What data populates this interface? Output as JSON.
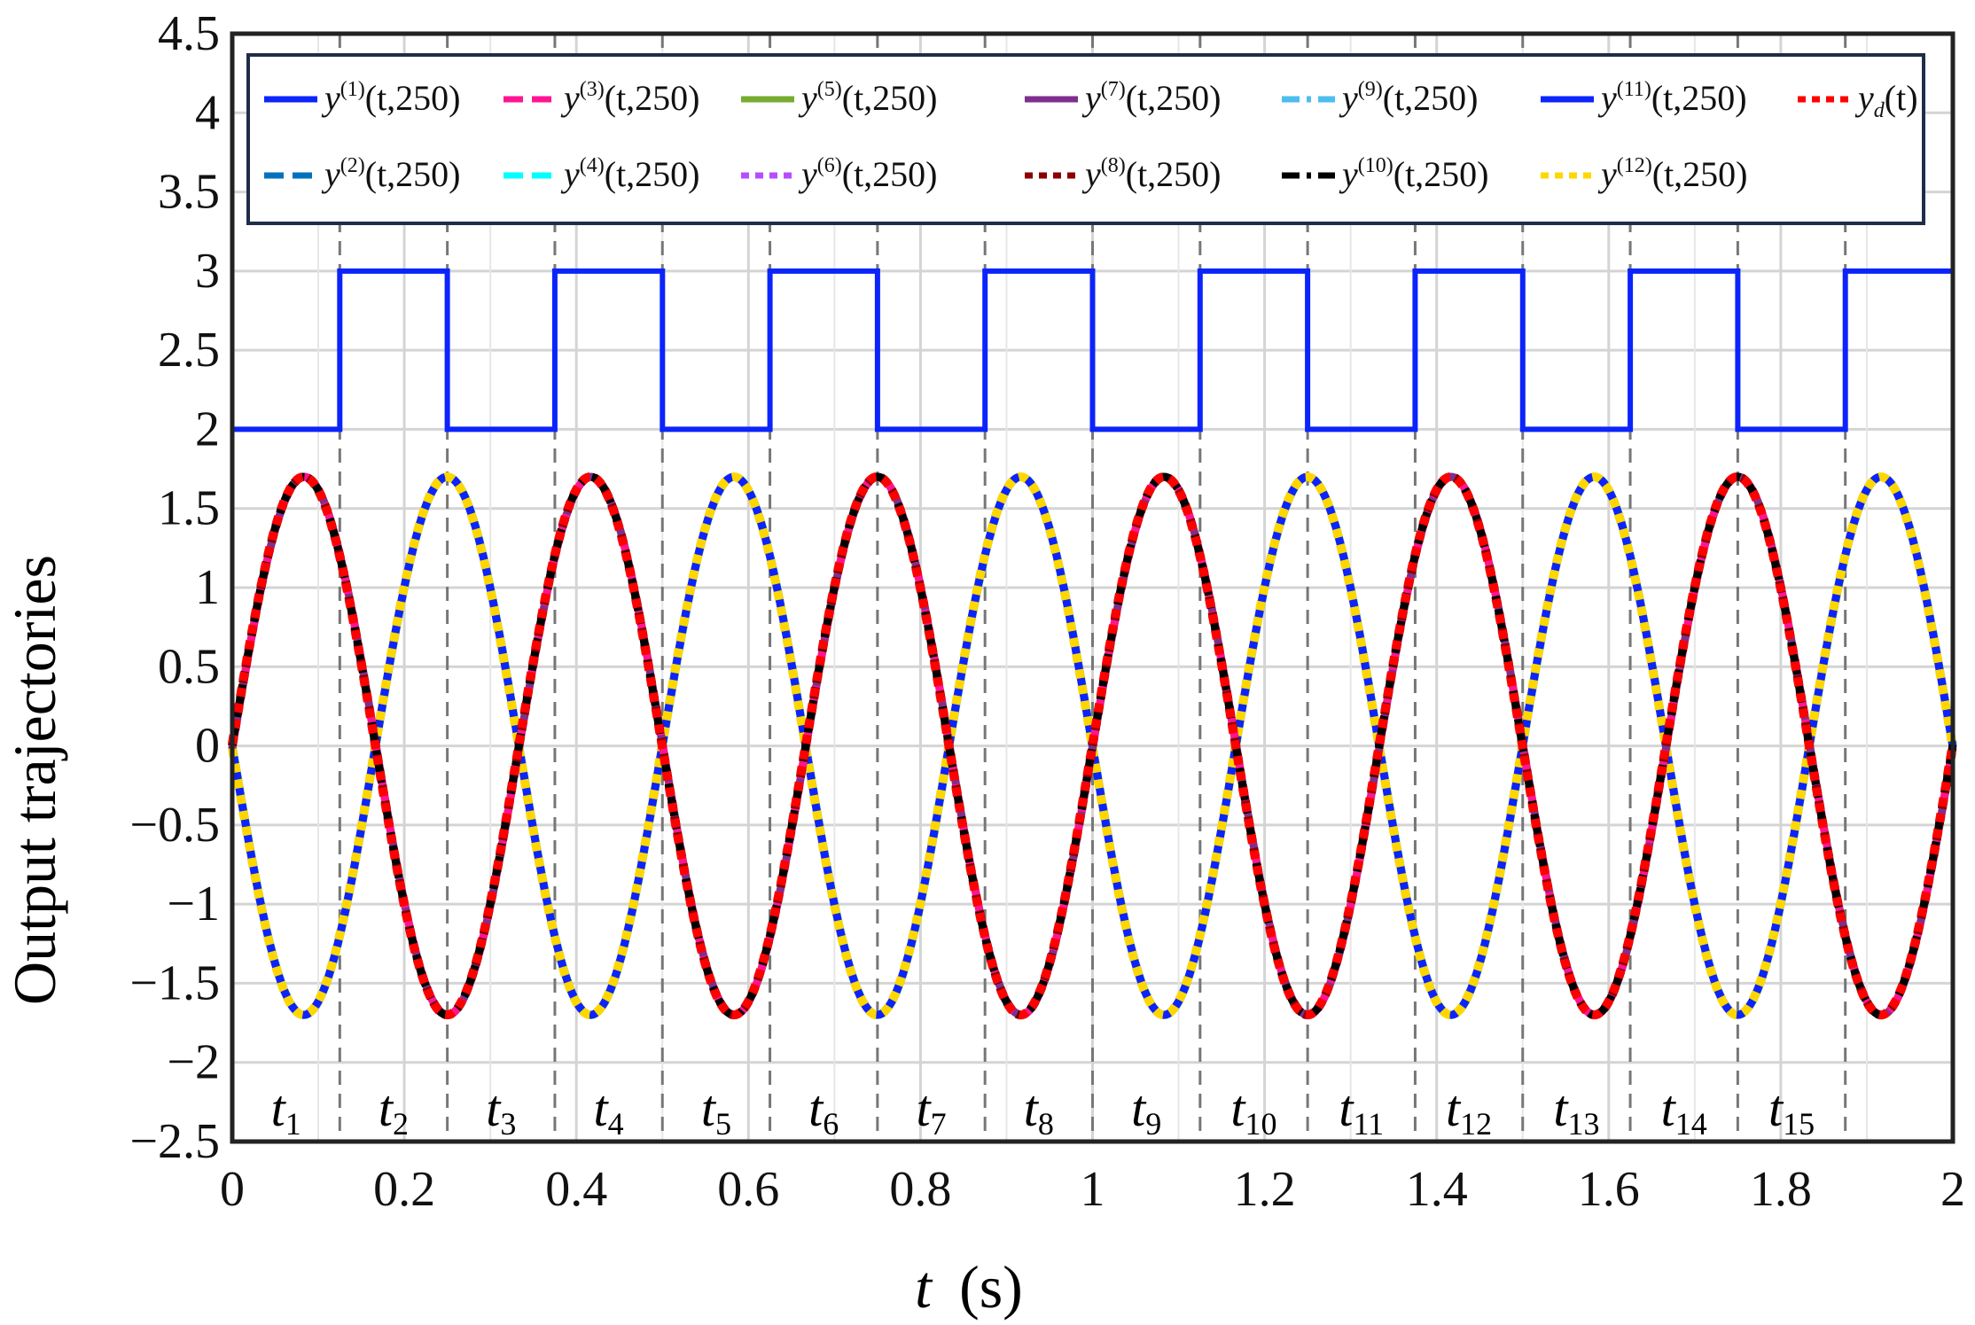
{
  "chart_data": {
    "type": "line",
    "xlabel_var": "t",
    "xlabel_unit": "(s)",
    "ylabel": "Output trajectories",
    "xlim": [
      0,
      2
    ],
    "ylim": [
      -2.5,
      4.5
    ],
    "x_ticks": [
      "0",
      "0.2",
      "0.4",
      "0.6",
      "0.8",
      "1",
      "1.2",
      "1.4",
      "1.6",
      "1.8",
      "2"
    ],
    "y_ticks": [
      "−2.5",
      "−2",
      "−1.5",
      "−1",
      "−0.5",
      "0",
      "0.5",
      "1",
      "1.5",
      "2",
      "2.5",
      "3",
      "3.5",
      "4",
      "4.5"
    ],
    "grid": true,
    "legend_position": "top",
    "legend": [
      {
        "sup": "(1)",
        "args": "(t,250)",
        "color": "#0b24fb",
        "style": "solid"
      },
      {
        "sup": "(2)",
        "args": "(t,250)",
        "color": "#0072bd",
        "style": "dashed"
      },
      {
        "sup": "(3)",
        "args": "(t,250)",
        "color": "#ff1493",
        "style": "dashed"
      },
      {
        "sup": "(4)",
        "args": "(t,250)",
        "color": "#00ffff",
        "style": "dashed"
      },
      {
        "sup": "(5)",
        "args": "(t,250)",
        "color": "#77ac30",
        "style": "solid"
      },
      {
        "sup": "(6)",
        "args": "(t,250)",
        "color": "#b84cff",
        "style": "dotted"
      },
      {
        "sup": "(7)",
        "args": "(t,250)",
        "color": "#7e2f8e",
        "style": "solid"
      },
      {
        "sup": "(8)",
        "args": "(t,250)",
        "color": "#8b0000",
        "style": "dotted"
      },
      {
        "sup": "(9)",
        "args": "(t,250)",
        "color": "#4dbeee",
        "style": "dashdot"
      },
      {
        "sup": "(10)",
        "args": "(t,250)",
        "color": "#000000",
        "style": "dashdot"
      },
      {
        "sup": "(11)",
        "args": "(t,250)",
        "color": "#0b24fb",
        "style": "solid"
      },
      {
        "sup": "(12)",
        "args": "(t,250)",
        "color": "#ffd700",
        "style": "dotted"
      },
      {
        "sub": "d",
        "args": "(t)",
        "color": "#ff0000",
        "style": "dotted"
      }
    ],
    "switching_times": [
      0.125,
      0.25,
      0.375,
      0.5,
      0.625,
      0.75,
      0.875,
      1.0,
      1.125,
      1.25,
      1.375,
      1.5,
      1.625,
      1.75,
      1.875
    ],
    "switching_labels": [
      {
        "var": "t",
        "sub": "1"
      },
      {
        "var": "t",
        "sub": "2"
      },
      {
        "var": "t",
        "sub": "3"
      },
      {
        "var": "t",
        "sub": "4"
      },
      {
        "var": "t",
        "sub": "5"
      },
      {
        "var": "t",
        "sub": "6"
      },
      {
        "var": "t",
        "sub": "7"
      },
      {
        "var": "t",
        "sub": "8"
      },
      {
        "var": "t",
        "sub": "9"
      },
      {
        "var": "t",
        "sub": "10"
      },
      {
        "var": "t",
        "sub": "11"
      },
      {
        "var": "t",
        "sub": "12"
      },
      {
        "var": "t",
        "sub": "13"
      },
      {
        "var": "t",
        "sub": "14"
      },
      {
        "var": "t",
        "sub": "15"
      }
    ],
    "switching_signal": {
      "low": 2,
      "high": 3,
      "levels": [
        2,
        3,
        2,
        3,
        2,
        3,
        2,
        3,
        2,
        3,
        2,
        3,
        2,
        3,
        2,
        3
      ]
    },
    "trajectories": {
      "amplitude": 1.7,
      "frequency_hz": 3,
      "group_a": "1.7*sin(6*pi*t)",
      "group_b": "-1.7*sin(6*pi*t)",
      "group_a_series": [
        {
          "color": "#7e2f8e",
          "style": "solid"
        },
        {
          "color": "#ff1493",
          "style": "dashed"
        },
        {
          "color": "#8b0000",
          "style": "dotted"
        },
        {
          "color": "#000000",
          "style": "dashdot"
        },
        {
          "color": "#ff0000",
          "style": "dotted"
        }
      ],
      "group_b_series": [
        {
          "color": "#4dbeee",
          "style": "solid"
        },
        {
          "color": "#77ac30",
          "style": "solid"
        },
        {
          "color": "#0b24fb",
          "style": "solid"
        },
        {
          "color": "#ffd700",
          "style": "dotted"
        }
      ]
    }
  }
}
